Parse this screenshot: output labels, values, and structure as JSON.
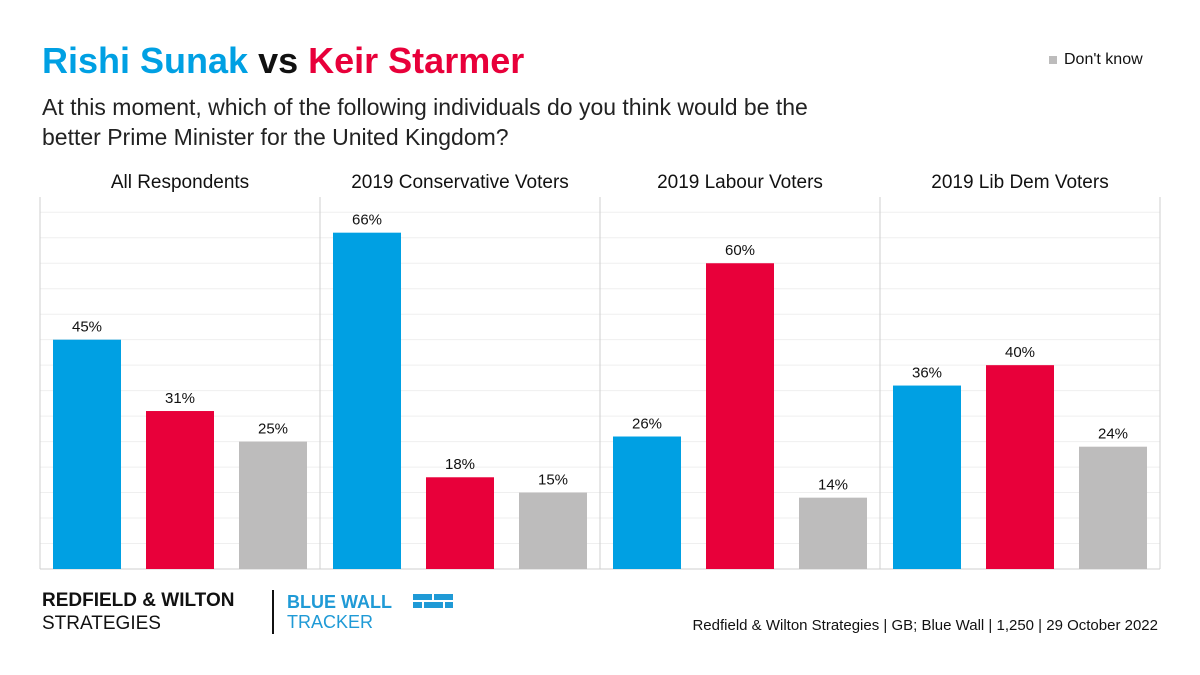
{
  "chart_data": {
    "type": "bar",
    "title_connector": "vs",
    "subtitle": "At this moment, which of the following individuals do you think would be the better Prime Minister for the United Kingdom?",
    "categories": [
      "All Respondents",
      "2019 Conservative Voters",
      "2019 Labour Voters",
      "2019 Lib Dem Voters"
    ],
    "series": [
      {
        "name": "Rishi Sunak",
        "color": "#00a0e3",
        "values": [
          45,
          66,
          26,
          36
        ],
        "value_labels": [
          "45%",
          "66%",
          "26%",
          "36%"
        ]
      },
      {
        "name": "Keir Starmer",
        "color": "#e8003a",
        "values": [
          31,
          18,
          60,
          40
        ],
        "value_labels": [
          "31%",
          "18%",
          "60%",
          "40%"
        ]
      },
      {
        "name": "Don't know",
        "color": "#bdbcbc",
        "values": [
          25,
          15,
          14,
          24
        ],
        "value_labels": [
          "25%",
          "15%",
          "14%",
          "24%"
        ]
      }
    ],
    "legend_series": [
      2
    ],
    "ylim": [
      0,
      73
    ],
    "yticks": [
      0,
      5,
      10,
      15,
      20,
      25,
      30,
      35,
      40,
      45,
      50,
      55,
      60,
      65,
      70
    ],
    "grid": true,
    "source": "Redfield & Wilton Strategies | GB; Blue Wall | 1,250 | 29 October 2022",
    "logo": {
      "line1": "REDFIELD & WILTON",
      "line2": "STRATEGIES",
      "tracker1": "BLUE WALL",
      "tracker2": "TRACKER"
    }
  }
}
